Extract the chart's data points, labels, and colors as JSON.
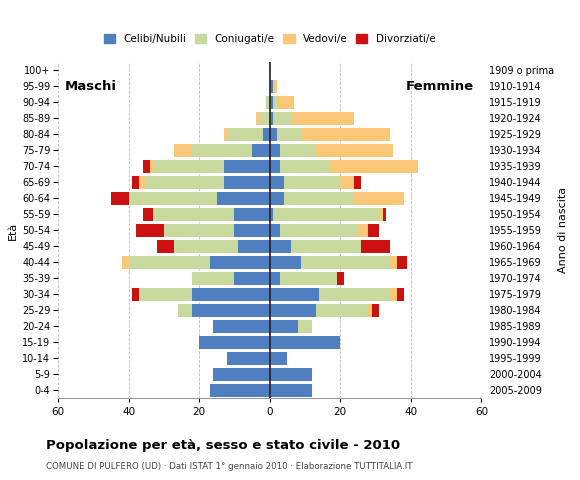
{
  "age_groups": [
    "0-4",
    "5-9",
    "10-14",
    "15-19",
    "20-24",
    "25-29",
    "30-34",
    "35-39",
    "40-44",
    "45-49",
    "50-54",
    "55-59",
    "60-64",
    "65-69",
    "70-74",
    "75-79",
    "80-84",
    "85-89",
    "90-94",
    "95-99",
    "100+"
  ],
  "birth_years": [
    "2005-2009",
    "2000-2004",
    "1995-1999",
    "1990-1994",
    "1985-1989",
    "1980-1984",
    "1975-1979",
    "1970-1974",
    "1965-1969",
    "1960-1964",
    "1955-1959",
    "1950-1954",
    "1945-1949",
    "1940-1944",
    "1935-1939",
    "1930-1934",
    "1925-1929",
    "1920-1924",
    "1915-1919",
    "1910-1914",
    "1909 o prima"
  ],
  "male": {
    "celibi": [
      17,
      16,
      12,
      20,
      16,
      22,
      22,
      10,
      17,
      9,
      10,
      10,
      15,
      13,
      13,
      5,
      2,
      0,
      0,
      0,
      0
    ],
    "coniugati": [
      0,
      0,
      0,
      0,
      0,
      4,
      15,
      12,
      23,
      18,
      20,
      23,
      25,
      22,
      20,
      17,
      10,
      3,
      1,
      0,
      0
    ],
    "vedovi": [
      0,
      0,
      0,
      0,
      0,
      0,
      0,
      0,
      2,
      0,
      0,
      0,
      0,
      2,
      1,
      5,
      1,
      1,
      0,
      0,
      0
    ],
    "divorziati": [
      0,
      0,
      0,
      0,
      0,
      0,
      2,
      0,
      0,
      5,
      8,
      3,
      5,
      2,
      2,
      0,
      0,
      0,
      0,
      0,
      0
    ]
  },
  "female": {
    "nubili": [
      12,
      12,
      5,
      20,
      8,
      13,
      14,
      3,
      9,
      6,
      3,
      1,
      4,
      4,
      3,
      3,
      2,
      1,
      1,
      1,
      0
    ],
    "coniugate": [
      0,
      0,
      0,
      0,
      4,
      15,
      20,
      16,
      25,
      20,
      22,
      30,
      20,
      16,
      14,
      10,
      7,
      5,
      1,
      0,
      0
    ],
    "vedove": [
      0,
      0,
      0,
      0,
      0,
      1,
      2,
      0,
      2,
      0,
      3,
      1,
      14,
      4,
      25,
      22,
      25,
      18,
      5,
      1,
      0
    ],
    "divorziate": [
      0,
      0,
      0,
      0,
      0,
      2,
      2,
      2,
      3,
      8,
      3,
      1,
      0,
      2,
      0,
      0,
      0,
      0,
      0,
      0,
      0
    ]
  },
  "colors": {
    "celibi": "#4f7fc0",
    "coniugati": "#c8d9a0",
    "vedovi": "#f8c878",
    "divorziati": "#cc1111"
  },
  "xlim": 60,
  "title": "Popolazione per età, sesso e stato civile - 2010",
  "subtitle": "COMUNE DI PULFERO (UD) · Dati ISTAT 1° gennaio 2010 · Elaborazione TUTTITALIA.IT",
  "legend_labels": [
    "Celibi/Nubili",
    "Coniugati/e",
    "Vedovi/e",
    "Divorziati/e"
  ],
  "background_color": "#ffffff",
  "grid_color": "#bbbbbb"
}
